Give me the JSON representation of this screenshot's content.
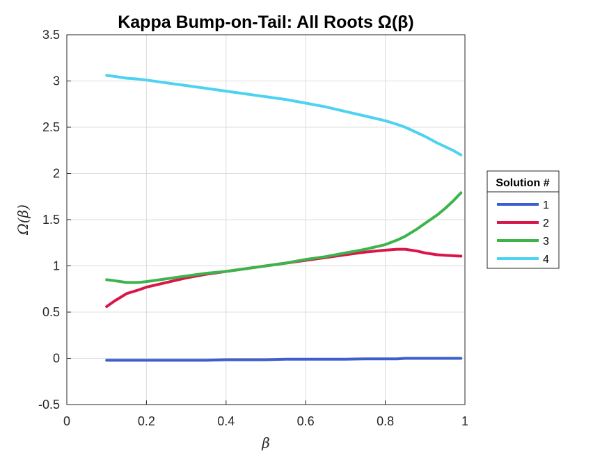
{
  "chart_data": {
    "type": "line",
    "title": "Kappa Bump-on-Tail: All Roots Ω(β)",
    "xlabel": "β",
    "ylabel": "Ω(β)",
    "xlim": [
      0,
      1
    ],
    "ylim": [
      -0.5,
      3.5
    ],
    "xticks": [
      "0",
      "0.2",
      "0.4",
      "0.6",
      "0.8",
      "1"
    ],
    "yticks": [
      "-0.5",
      "0",
      "0.5",
      "1",
      "1.5",
      "2",
      "2.5",
      "3",
      "3.5"
    ],
    "grid": true,
    "legend": {
      "title": "Solution #",
      "placement": "outside-right"
    },
    "x": [
      0.1,
      0.12,
      0.15,
      0.18,
      0.2,
      0.25,
      0.3,
      0.35,
      0.4,
      0.45,
      0.5,
      0.55,
      0.6,
      0.65,
      0.7,
      0.75,
      0.8,
      0.83,
      0.85,
      0.88,
      0.9,
      0.93,
      0.95,
      0.97,
      0.99
    ],
    "series": [
      {
        "name": "1",
        "color": "#3c5fcd",
        "values": [
          -0.02,
          -0.02,
          -0.02,
          -0.02,
          -0.02,
          -0.02,
          -0.02,
          -0.02,
          -0.015,
          -0.015,
          -0.015,
          -0.01,
          -0.01,
          -0.01,
          -0.01,
          -0.005,
          -0.005,
          -0.005,
          0,
          0,
          0,
          0,
          0,
          0,
          0
        ]
      },
      {
        "name": "2",
        "color": "#d9164a",
        "values": [
          0.56,
          0.62,
          0.7,
          0.74,
          0.77,
          0.82,
          0.87,
          0.91,
          0.94,
          0.97,
          1.0,
          1.03,
          1.06,
          1.09,
          1.12,
          1.15,
          1.17,
          1.18,
          1.18,
          1.16,
          1.14,
          1.12,
          1.115,
          1.11,
          1.105
        ]
      },
      {
        "name": "3",
        "color": "#3cb44b",
        "values": [
          0.85,
          0.84,
          0.82,
          0.82,
          0.83,
          0.86,
          0.89,
          0.92,
          0.94,
          0.97,
          1.0,
          1.03,
          1.07,
          1.1,
          1.14,
          1.18,
          1.23,
          1.28,
          1.32,
          1.4,
          1.46,
          1.55,
          1.62,
          1.7,
          1.79
        ]
      },
      {
        "name": "4",
        "color": "#4dd2f0",
        "values": [
          3.06,
          3.05,
          3.03,
          3.02,
          3.01,
          2.98,
          2.95,
          2.92,
          2.89,
          2.86,
          2.83,
          2.8,
          2.76,
          2.72,
          2.67,
          2.62,
          2.57,
          2.53,
          2.5,
          2.44,
          2.4,
          2.33,
          2.29,
          2.25,
          2.2
        ]
      }
    ]
  }
}
